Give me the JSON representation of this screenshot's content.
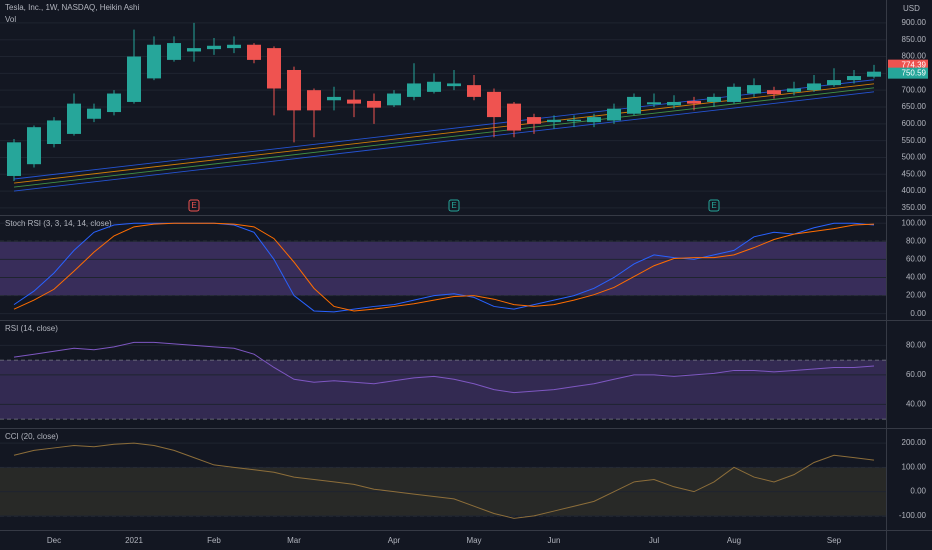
{
  "chart_data": [
    {
      "type": "candlestick",
      "title": "Tesla, Inc., 1W, NASDAQ, Heikin Ashi",
      "subtitle": "Vol",
      "currency": "USD",
      "categories": [
        null,
        null,
        "Dec",
        null,
        null,
        null,
        "2021",
        null,
        null,
        null,
        "Feb",
        null,
        null,
        null,
        "Mar",
        null,
        null,
        null,
        null,
        "Apr",
        null,
        null,
        null,
        "May",
        null,
        null,
        null,
        "Jun",
        null,
        null,
        null,
        null,
        "Jul",
        null,
        null,
        null,
        "Aug",
        null,
        null,
        null,
        null,
        "Sep",
        null,
        null
      ],
      "open": [
        445,
        480,
        540,
        570,
        615,
        635,
        665,
        735,
        790,
        815,
        822,
        825,
        835,
        825,
        760,
        700,
        670,
        672,
        668,
        655,
        680,
        695,
        712,
        715,
        695,
        660,
        620,
        605,
        608,
        605,
        610,
        630,
        658,
        655,
        668,
        665,
        665,
        690,
        700,
        695,
        700,
        715,
        730,
        740
      ],
      "close": [
        545,
        590,
        610,
        660,
        645,
        690,
        800,
        835,
        840,
        825,
        832,
        835,
        790,
        705,
        640,
        640,
        680,
        660,
        648,
        690,
        720,
        725,
        720,
        680,
        620,
        580,
        600,
        612,
        612,
        620,
        645,
        680,
        664,
        665,
        660,
        680,
        710,
        715,
        688,
        705,
        720,
        730,
        742,
        755
      ],
      "high": [
        555,
        595,
        620,
        690,
        660,
        700,
        880,
        860,
        860,
        900,
        855,
        860,
        840,
        830,
        770,
        705,
        710,
        700,
        690,
        700,
        780,
        750,
        760,
        745,
        705,
        665,
        630,
        625,
        625,
        630,
        660,
        690,
        690,
        685,
        680,
        690,
        720,
        735,
        710,
        725,
        745,
        765,
        760,
        775
      ],
      "low": [
        430,
        470,
        530,
        565,
        605,
        625,
        660,
        730,
        785,
        785,
        805,
        810,
        780,
        625,
        545,
        560,
        640,
        620,
        600,
        650,
        670,
        690,
        700,
        670,
        560,
        560,
        570,
        585,
        590,
        590,
        600,
        625,
        650,
        645,
        640,
        650,
        660,
        680,
        675,
        685,
        695,
        710,
        720,
        735
      ],
      "up_color": "#26a69a",
      "down_color": "#ef5350",
      "ylim": [
        329,
        968
      ],
      "yticks": [
        {
          "value": 900,
          "label": "900.00"
        },
        {
          "value": 850,
          "label": "850.00"
        },
        {
          "value": 800,
          "label": "800.00"
        },
        {
          "value": 750,
          "label": "750.00"
        },
        {
          "value": 700,
          "label": "700.00"
        },
        {
          "value": 650,
          "label": "650.00"
        },
        {
          "value": 600,
          "label": "600.00"
        },
        {
          "value": 550,
          "label": "550.00"
        },
        {
          "value": 500,
          "label": "500.00"
        },
        {
          "value": 450,
          "label": "450.00"
        },
        {
          "value": 400,
          "label": "400.00"
        },
        {
          "value": 350,
          "label": "350.00"
        }
      ],
      "price_tags": [
        {
          "value": 774.39,
          "color": "#ef5350"
        },
        {
          "value": 750.59,
          "color": "#26a69a"
        }
      ],
      "channel_lines": [
        {
          "color": "#2962ff",
          "values": [
            400,
            695
          ]
        },
        {
          "color": "#4caf50",
          "values": [
            412,
            707
          ]
        },
        {
          "color": "#ff9800",
          "values": [
            424,
            719
          ]
        },
        {
          "color": "#2962ff",
          "values": [
            436,
            731
          ]
        }
      ],
      "events": [
        {
          "index": 9,
          "label": "E",
          "color": "#ef5350"
        },
        {
          "index": 22,
          "label": "E",
          "color": "#26a69a"
        },
        {
          "index": 35,
          "label": "E",
          "color": "#26a69a"
        }
      ]
    },
    {
      "type": "line",
      "title": "Stoch RSI (3, 3, 14, 14, close)",
      "ylim": [
        -7,
        108
      ],
      "band": [
        20,
        80
      ],
      "band_color": "rgba(126,87,194,0.35)",
      "yticks": [
        {
          "value": 100,
          "label": "100.00"
        },
        {
          "value": 80,
          "label": "80.00"
        },
        {
          "value": 60,
          "label": "60.00"
        },
        {
          "value": 40,
          "label": "40.00"
        },
        {
          "value": 20,
          "label": "20.00"
        },
        {
          "value": 0,
          "label": "0.00"
        }
      ],
      "series": [
        {
          "color": "#2962ff",
          "values": [
            10,
            25,
            45,
            70,
            90,
            98,
            100,
            100,
            100,
            100,
            100,
            98,
            90,
            60,
            20,
            3,
            2,
            5,
            8,
            10,
            15,
            20,
            22,
            18,
            8,
            5,
            10,
            15,
            20,
            28,
            40,
            55,
            65,
            62,
            60,
            65,
            70,
            85,
            90,
            88,
            95,
            100,
            100,
            98
          ]
        },
        {
          "color": "#ff6d00",
          "values": [
            5,
            15,
            27,
            47,
            68,
            86,
            96,
            99,
            100,
            100,
            100,
            99,
            96,
            83,
            57,
            28,
            8,
            3,
            5,
            8,
            11,
            15,
            19,
            20,
            16,
            10,
            8,
            10,
            15,
            21,
            29,
            41,
            53,
            61,
            62,
            62,
            65,
            73,
            82,
            88,
            91,
            94,
            98,
            99
          ]
        }
      ]
    },
    {
      "type": "line",
      "title": "RSI (14, close)",
      "ylim": [
        24,
        96.5
      ],
      "band": [
        30,
        70
      ],
      "band_color": "rgba(126,87,194,0.3)",
      "yticks": [
        {
          "value": 80,
          "label": "80.00"
        },
        {
          "value": 60,
          "label": "60.00"
        },
        {
          "value": 40,
          "label": "40.00"
        }
      ],
      "series": [
        {
          "color": "#7e57c2",
          "values": [
            72,
            74,
            76,
            78,
            77,
            79,
            82,
            82,
            81,
            80,
            79,
            78,
            74,
            65,
            57,
            55,
            56,
            55,
            54,
            56,
            58,
            59,
            57,
            54,
            50,
            48,
            49,
            50,
            52,
            54,
            57,
            60,
            60,
            59,
            60,
            61,
            63,
            63,
            62,
            63,
            64,
            65,
            65,
            66
          ]
        }
      ]
    },
    {
      "type": "line",
      "title": "CCI (20, close)",
      "ylim": [
        -158,
        258
      ],
      "band": [
        -100,
        100
      ],
      "band_color": "rgba(120,110,60,0.22)",
      "yticks": [
        {
          "value": 200,
          "label": "200.00"
        },
        {
          "value": 100,
          "label": "100.00"
        },
        {
          "value": 0,
          "label": "0.00"
        },
        {
          "value": -100,
          "label": "-100.00"
        }
      ],
      "series": [
        {
          "color": "#8d6e3a",
          "values": [
            150,
            170,
            180,
            190,
            185,
            195,
            200,
            190,
            170,
            140,
            110,
            100,
            90,
            80,
            60,
            50,
            40,
            30,
            10,
            0,
            -10,
            -20,
            -30,
            -60,
            -90,
            -110,
            -100,
            -80,
            -60,
            -40,
            0,
            40,
            50,
            20,
            0,
            40,
            100,
            60,
            40,
            70,
            120,
            150,
            140,
            130
          ]
        }
      ]
    }
  ]
}
